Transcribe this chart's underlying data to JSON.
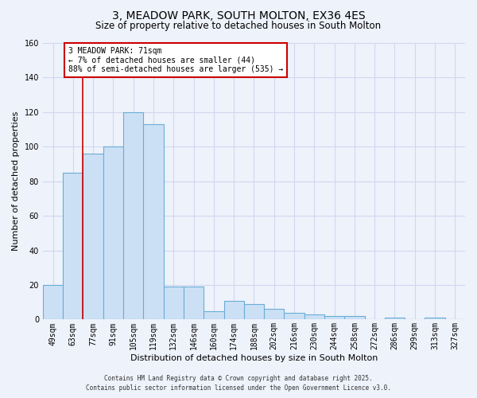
{
  "title": "3, MEADOW PARK, SOUTH MOLTON, EX36 4ES",
  "subtitle": "Size of property relative to detached houses in South Molton",
  "xlabel": "Distribution of detached houses by size in South Molton",
  "ylabel": "Number of detached properties",
  "bar_color": "#cce0f5",
  "bar_edge_color": "#6aadd5",
  "background_color": "#eef2fb",
  "grid_color": "#d0d8f0",
  "bins": [
    "49sqm",
    "63sqm",
    "77sqm",
    "91sqm",
    "105sqm",
    "119sqm",
    "132sqm",
    "146sqm",
    "160sqm",
    "174sqm",
    "188sqm",
    "202sqm",
    "216sqm",
    "230sqm",
    "244sqm",
    "258sqm",
    "272sqm",
    "286sqm",
    "299sqm",
    "313sqm",
    "327sqm"
  ],
  "values": [
    20,
    85,
    96,
    100,
    120,
    113,
    19,
    19,
    5,
    11,
    9,
    6,
    4,
    3,
    2,
    2,
    0,
    1,
    0,
    1,
    0
  ],
  "ylim": [
    0,
    160
  ],
  "yticks": [
    0,
    20,
    40,
    60,
    80,
    100,
    120,
    140,
    160
  ],
  "property_line_color": "#cc0000",
  "property_line_x": 1.5,
  "annotation_title": "3 MEADOW PARK: 71sqm",
  "annotation_line1": "← 7% of detached houses are smaller (44)",
  "annotation_line2": "88% of semi-detached houses are larger (535) →",
  "annotation_box_color": "#ffffff",
  "annotation_box_edge_color": "#cc0000",
  "footer_line1": "Contains HM Land Registry data © Crown copyright and database right 2025.",
  "footer_line2": "Contains public sector information licensed under the Open Government Licence v3.0.",
  "title_fontsize": 10,
  "subtitle_fontsize": 8.5,
  "axis_label_fontsize": 8,
  "tick_fontsize": 7,
  "annotation_fontsize": 7,
  "footer_fontsize": 5.5
}
